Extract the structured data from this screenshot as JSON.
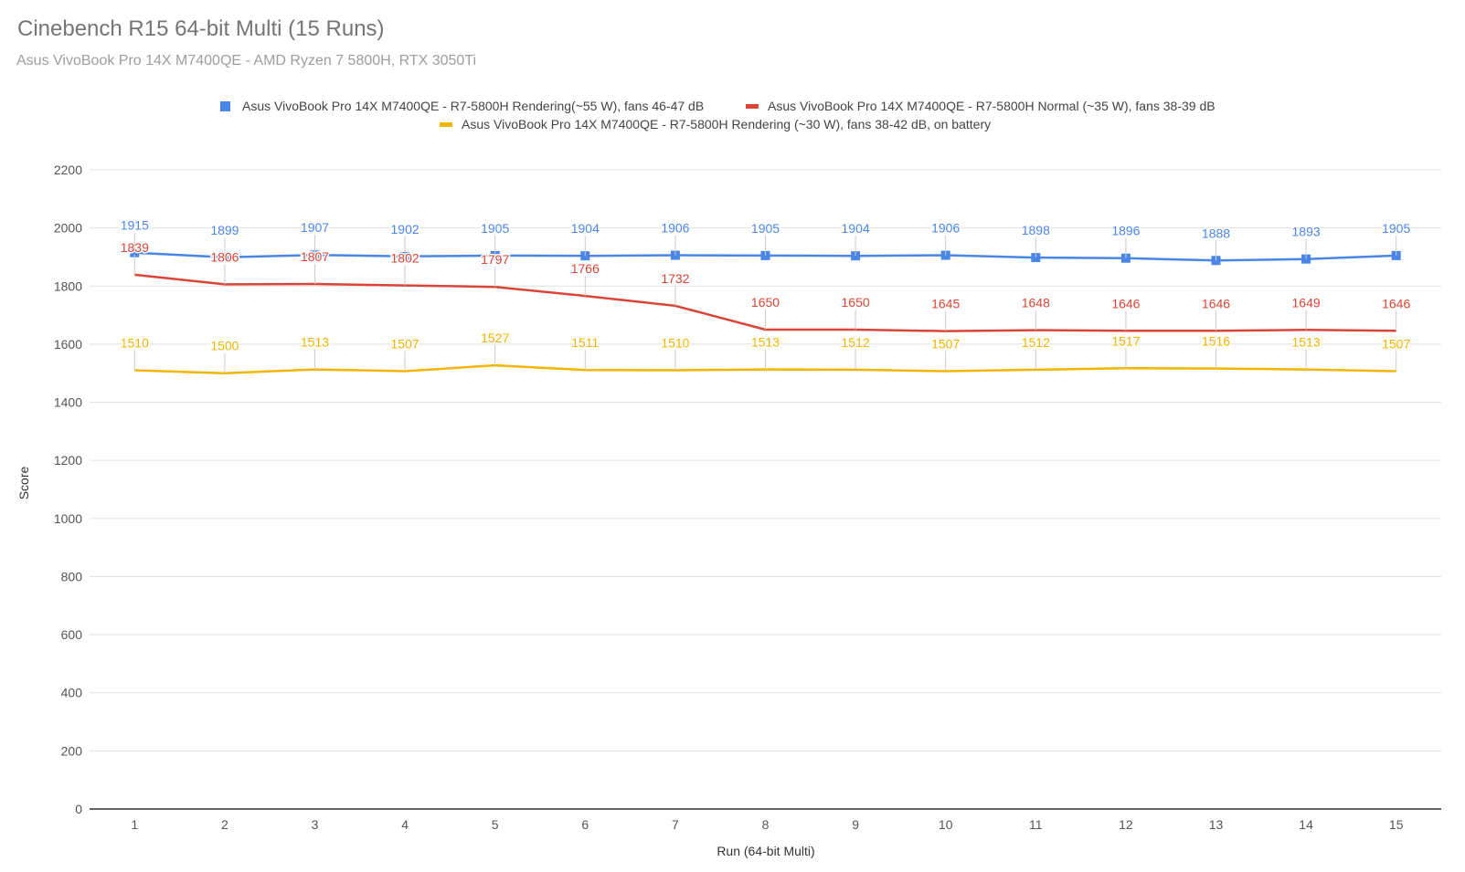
{
  "chart_data": {
    "type": "line",
    "title": "Cinebench R15 64-bit Multi (15 Runs)",
    "subtitle": "Asus VivoBook Pro 14X M7400QE - AMD Ryzen 7 5800H, RTX 3050Ti",
    "xlabel": "Run (64-bit Multi)",
    "ylabel": "Score",
    "ylim": [
      0,
      2200
    ],
    "yticks": [
      0,
      200,
      400,
      600,
      800,
      1000,
      1200,
      1400,
      1600,
      1800,
      2000,
      2200
    ],
    "grid": true,
    "legend_position": "top",
    "categories": [
      "1",
      "2",
      "3",
      "4",
      "5",
      "6",
      "7",
      "8",
      "9",
      "10",
      "11",
      "12",
      "13",
      "14",
      "15"
    ],
    "series": [
      {
        "name": "Asus VivoBook Pro 14X M7400QE - R7-5800H Rendering(~55 W), fans 46-47 dB",
        "color": "#4a86e8",
        "marker": "square",
        "values": [
          1915,
          1899,
          1907,
          1902,
          1905,
          1904,
          1906,
          1905,
          1904,
          1906,
          1898,
          1896,
          1888,
          1893,
          1905
        ]
      },
      {
        "name": "Asus VivoBook Pro 14X M7400QE - R7-5800H Normal (~35 W), fans 38-39 dB",
        "color": "#db4437",
        "marker": "none",
        "values": [
          1839,
          1806,
          1807,
          1802,
          1797,
          1766,
          1732,
          1650,
          1650,
          1645,
          1648,
          1646,
          1646,
          1649,
          1646
        ]
      },
      {
        "name": "Asus VivoBook Pro 14X M7400QE - R7-5800H Rendering (~30 W), fans 38-42 dB, on battery",
        "color": "#f4b400",
        "marker": "none",
        "values": [
          1510,
          1500,
          1513,
          1507,
          1527,
          1511,
          1510,
          1513,
          1512,
          1507,
          1512,
          1517,
          1516,
          1513,
          1507
        ]
      }
    ]
  }
}
